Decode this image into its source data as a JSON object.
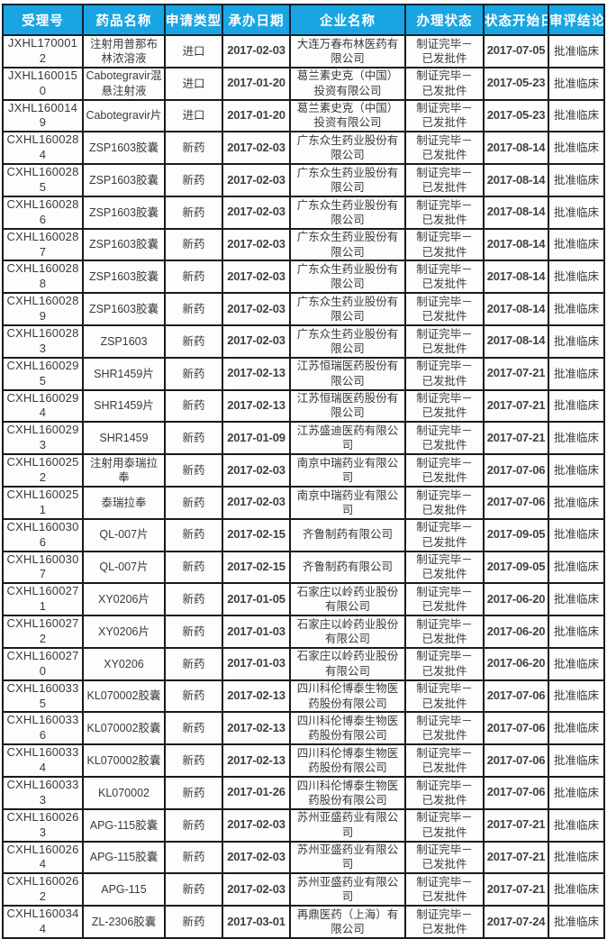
{
  "colors": {
    "header_bg": "#19a5e2",
    "header_text": "#ffffff",
    "grid_border": "#1a1a1a",
    "body_text": "#3a3a3a",
    "row_bg": "#fdfdfd"
  },
  "table": {
    "columns": [
      {
        "key": "acceptance-number",
        "label": "受理号"
      },
      {
        "key": "drug-name",
        "label": "药品名称"
      },
      {
        "key": "application-type",
        "label": "申请类型"
      },
      {
        "key": "acceptance-date",
        "label": "承办日期"
      },
      {
        "key": "company-name",
        "label": "企业名称"
      },
      {
        "key": "processing-status",
        "label": "办理状态"
      },
      {
        "key": "status-start-date",
        "label": "状态开始日"
      },
      {
        "key": "review-conclusion",
        "label": "审评结论"
      }
    ],
    "rows": [
      [
        "JXHL1700012",
        "注射用普那布林浓溶液",
        "进口",
        "2017-02-03",
        "大连万春布林医药有限公司",
        "制证完毕－\n已发批件",
        "2017-07-05",
        "批准临床"
      ],
      [
        "JXHL1600150",
        "Cabotegravir混悬注射液",
        "进口",
        "2017-01-20",
        "葛兰素史克（中国）投资有限公司",
        "制证完毕－\n已发批件",
        "2017-05-23",
        "批准临床"
      ],
      [
        "JXHL1600149",
        "Cabotegravir片",
        "进口",
        "2017-01-20",
        "葛兰素史克（中国）投资有限公司",
        "制证完毕－\n已发批件",
        "2017-05-23",
        "批准临床"
      ],
      [
        "CXHL1600284",
        "ZSP1603胶囊",
        "新药",
        "2017-02-03",
        "广东众生药业股份有限公司",
        "制证完毕－\n已发批件",
        "2017-08-14",
        "批准临床"
      ],
      [
        "CXHL1600285",
        "ZSP1603胶囊",
        "新药",
        "2017-02-03",
        "广东众生药业股份有限公司",
        "制证完毕－\n已发批件",
        "2017-08-14",
        "批准临床"
      ],
      [
        "CXHL1600286",
        "ZSP1603胶囊",
        "新药",
        "2017-02-03",
        "广东众生药业股份有限公司",
        "制证完毕－\n已发批件",
        "2017-08-14",
        "批准临床"
      ],
      [
        "CXHL1600287",
        "ZSP1603胶囊",
        "新药",
        "2017-02-03",
        "广东众生药业股份有限公司",
        "制证完毕－\n已发批件",
        "2017-08-14",
        "批准临床"
      ],
      [
        "CXHL1600288",
        "ZSP1603胶囊",
        "新药",
        "2017-02-03",
        "广东众生药业股份有限公司",
        "制证完毕－\n已发批件",
        "2017-08-14",
        "批准临床"
      ],
      [
        "CXHL1600289",
        "ZSP1603胶囊",
        "新药",
        "2017-02-03",
        "广东众生药业股份有限公司",
        "制证完毕－\n已发批件",
        "2017-08-14",
        "批准临床"
      ],
      [
        "CXHL1600283",
        "ZSP1603",
        "新药",
        "2017-02-03",
        "广东众生药业股份有限公司",
        "制证完毕－\n已发批件",
        "2017-08-14",
        "批准临床"
      ],
      [
        "CXHL1600295",
        "SHR1459片",
        "新药",
        "2017-02-13",
        "江苏恒瑞医药股份有限公司",
        "制证完毕－\n已发批件",
        "2017-07-21",
        "批准临床"
      ],
      [
        "CXHL1600294",
        "SHR1459片",
        "新药",
        "2017-02-13",
        "江苏恒瑞医药股份有限公司",
        "制证完毕－\n已发批件",
        "2017-07-21",
        "批准临床"
      ],
      [
        "CXHL1600293",
        "SHR1459",
        "新药",
        "2017-01-09",
        "江苏盛迪医药有限公司",
        "制证完毕－\n已发批件",
        "2017-07-21",
        "批准临床"
      ],
      [
        "CXHL1600252",
        "注射用泰瑞拉奉",
        "新药",
        "2017-02-03",
        "南京中瑞药业有限公司",
        "制证完毕－\n已发批件",
        "2017-07-06",
        "批准临床"
      ],
      [
        "CXHL1600251",
        "泰瑞拉奉",
        "新药",
        "2017-02-03",
        "南京中瑞药业有限公司",
        "制证完毕－\n已发批件",
        "2017-07-06",
        "批准临床"
      ],
      [
        "CXHL1600306",
        "QL-007片",
        "新药",
        "2017-02-15",
        "齐鲁制药有限公司",
        "制证完毕－\n已发批件",
        "2017-09-05",
        "批准临床"
      ],
      [
        "CXHL1600307",
        "QL-007片",
        "新药",
        "2017-02-15",
        "齐鲁制药有限公司",
        "制证完毕－\n已发批件",
        "2017-09-05",
        "批准临床"
      ],
      [
        "CXHL1600271",
        "XY0206片",
        "新药",
        "2017-01-05",
        "石家庄以岭药业股份有限公司",
        "制证完毕－\n已发批件",
        "2017-06-20",
        "批准临床"
      ],
      [
        "CXHL1600272",
        "XY0206片",
        "新药",
        "2017-01-03",
        "石家庄以岭药业股份有限公司",
        "制证完毕－\n已发批件",
        "2017-06-20",
        "批准临床"
      ],
      [
        "CXHL1600270",
        "XY0206",
        "新药",
        "2017-01-03",
        "石家庄以岭药业股份有限公司",
        "制证完毕－\n已发批件",
        "2017-06-20",
        "批准临床"
      ],
      [
        "CXHL1600335",
        "KL070002胶囊",
        "新药",
        "2017-02-13",
        "四川科伦博泰生物医药股份有限公司",
        "制证完毕－\n已发批件",
        "2017-07-06",
        "批准临床"
      ],
      [
        "CXHL1600336",
        "KL070002胶囊",
        "新药",
        "2017-02-13",
        "四川科伦博泰生物医药股份有限公司",
        "制证完毕－\n已发批件",
        "2017-07-06",
        "批准临床"
      ],
      [
        "CXHL1600334",
        "KL070002胶囊",
        "新药",
        "2017-02-13",
        "四川科伦博泰生物医药股份有限公司",
        "制证完毕－\n已发批件",
        "2017-07-06",
        "批准临床"
      ],
      [
        "CXHL1600333",
        "KL070002",
        "新药",
        "2017-01-26",
        "四川科伦博泰生物医药股份有限公司",
        "制证完毕－\n已发批件",
        "2017-07-06",
        "批准临床"
      ],
      [
        "CXHL1600263",
        "APG-115胶囊",
        "新药",
        "2017-02-03",
        "苏州亚盛药业有限公司",
        "制证完毕－\n已发批件",
        "2017-07-21",
        "批准临床"
      ],
      [
        "CXHL1600264",
        "APG-115胶囊",
        "新药",
        "2017-02-03",
        "苏州亚盛药业有限公司",
        "制证完毕－\n已发批件",
        "2017-07-21",
        "批准临床"
      ],
      [
        "CXHL1600262",
        "APG-115",
        "新药",
        "2017-02-03",
        "苏州亚盛药业有限公司",
        "制证完毕－\n已发批件",
        "2017-07-21",
        "批准临床"
      ],
      [
        "CXHL1600344",
        "ZL-2306胶囊",
        "新药",
        "2017-03-01",
        "再鼎医药（上海）有限公司",
        "制证完毕－\n已发批件",
        "2017-07-24",
        "批准临床"
      ]
    ]
  }
}
